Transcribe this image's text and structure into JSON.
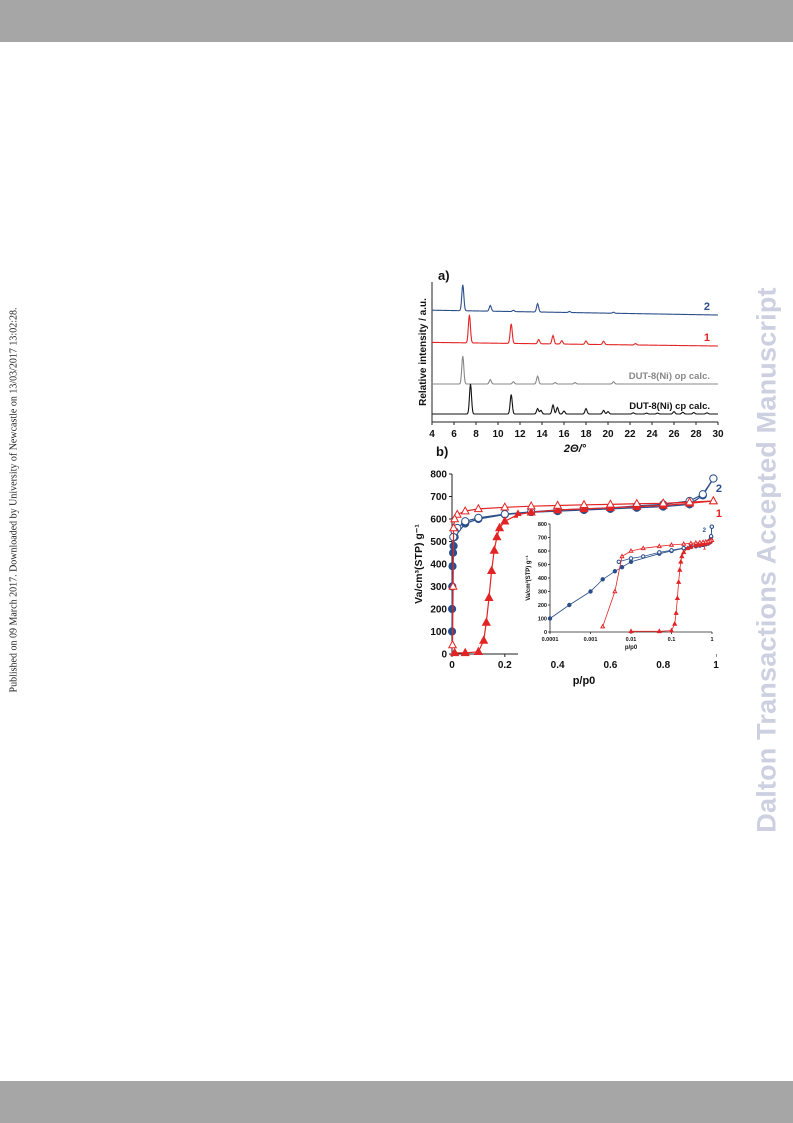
{
  "page": {
    "published_note": "Published on 09 March 2017. Downloaded by University of Newcastle on 13/03/2017 13:02:28.",
    "watermark": "Dalton Transactions Accepted Manuscript"
  },
  "colors": {
    "blue": "#2b4f8a",
    "red": "#e32424",
    "gray": "#888888",
    "black": "#111111"
  },
  "chart_data": [
    {
      "type": "line",
      "panel_label": "a)",
      "xlabel": "2Θ/°",
      "ylabel": "Relative intensity / a.u.",
      "xlim": [
        4,
        30
      ],
      "x_ticks": [
        "4",
        "6",
        "8",
        "10",
        "12",
        "14",
        "16",
        "18",
        "20",
        "22",
        "24",
        "26",
        "28",
        "30"
      ],
      "series": [
        {
          "name": "2",
          "color": "#2b4f8a",
          "peaks": [
            [
              6.8,
              1.0
            ],
            [
              9.3,
              0.22
            ],
            [
              13.6,
              0.32
            ],
            [
              11.4,
              0.05
            ],
            [
              16.5,
              0.04
            ],
            [
              20.5,
              0.04
            ]
          ]
        },
        {
          "name": "1",
          "color": "#e32424",
          "peaks": [
            [
              7.4,
              1.0
            ],
            [
              11.2,
              0.7
            ],
            [
              13.7,
              0.15
            ],
            [
              15.0,
              0.3
            ],
            [
              15.8,
              0.12
            ],
            [
              18.0,
              0.12
            ],
            [
              19.6,
              0.12
            ],
            [
              22.5,
              0.05
            ]
          ]
        },
        {
          "name": "DUT-8(Ni) op calc.",
          "color": "#888888",
          "peaks": [
            [
              6.8,
              1.0
            ],
            [
              9.3,
              0.16
            ],
            [
              11.4,
              0.08
            ],
            [
              13.6,
              0.28
            ],
            [
              15.2,
              0.05
            ],
            [
              17.0,
              0.05
            ],
            [
              20.5,
              0.08
            ]
          ]
        },
        {
          "name": "DUT-8(Ni) cp calc.",
          "color": "#111111",
          "peaks": [
            [
              7.5,
              1.0
            ],
            [
              11.2,
              0.65
            ],
            [
              13.6,
              0.18
            ],
            [
              13.9,
              0.12
            ],
            [
              15.0,
              0.3
            ],
            [
              15.4,
              0.22
            ],
            [
              16.0,
              0.1
            ],
            [
              18.0,
              0.18
            ],
            [
              19.6,
              0.12
            ],
            [
              20.0,
              0.08
            ],
            [
              22.3,
              0.04
            ],
            [
              23.5,
              0.03
            ],
            [
              24.5,
              0.03
            ],
            [
              26.0,
              0.08
            ],
            [
              26.8,
              0.06
            ],
            [
              27.8,
              0.05
            ],
            [
              29.0,
              0.04
            ]
          ]
        }
      ]
    },
    {
      "type": "scatter",
      "panel_label": "b)",
      "xlabel": "p/p0",
      "ylabel": "Va/cm³(STP) g⁻¹",
      "xlim": [
        0,
        1
      ],
      "ylim": [
        0,
        800
      ],
      "x_ticks": [
        "0",
        "0.2",
        "0.4",
        "0.6",
        "0.8",
        "1"
      ],
      "y_ticks": [
        "0",
        "100",
        "200",
        "300",
        "400",
        "500",
        "600",
        "700",
        "800"
      ],
      "series": [
        {
          "name": "2",
          "color": "#2b4f8a",
          "branch": "adsorption",
          "marker": "circle",
          "filled": true,
          "x": [
            0.0001,
            0.0003,
            0.001,
            0.002,
            0.004,
            0.006,
            0.01,
            0.05,
            0.1,
            0.2,
            0.3,
            0.4,
            0.5,
            0.6,
            0.7,
            0.8,
            0.9,
            0.95,
            0.99
          ],
          "y": [
            100,
            200,
            300,
            390,
            450,
            480,
            520,
            580,
            600,
            620,
            630,
            635,
            640,
            645,
            650,
            655,
            665,
            705,
            780
          ]
        },
        {
          "name": "2",
          "color": "#2b4f8a",
          "branch": "desorption",
          "marker": "circle",
          "filled": false,
          "x": [
            0.99,
            0.95,
            0.9,
            0.8,
            0.7,
            0.6,
            0.5,
            0.4,
            0.3,
            0.2,
            0.1,
            0.05,
            0.02,
            0.01,
            0.005
          ],
          "y": [
            780,
            710,
            680,
            665,
            658,
            650,
            645,
            640,
            632,
            622,
            605,
            590,
            560,
            545,
            520
          ]
        },
        {
          "name": "1",
          "color": "#e32424",
          "branch": "adsorption",
          "marker": "triangle",
          "filled": true,
          "x": [
            0.01,
            0.05,
            0.1,
            0.12,
            0.13,
            0.14,
            0.15,
            0.16,
            0.17,
            0.18,
            0.2,
            0.25,
            0.3,
            0.4,
            0.5,
            0.6,
            0.7,
            0.8,
            0.9,
            0.99
          ],
          "y": [
            5,
            5,
            10,
            60,
            140,
            250,
            370,
            460,
            520,
            560,
            590,
            620,
            630,
            640,
            645,
            650,
            655,
            660,
            670,
            680
          ]
        },
        {
          "name": "1",
          "color": "#e32424",
          "branch": "desorption",
          "marker": "triangle",
          "filled": false,
          "x": [
            0.99,
            0.9,
            0.8,
            0.7,
            0.6,
            0.5,
            0.4,
            0.3,
            0.2,
            0.1,
            0.05,
            0.02,
            0.01,
            0.006,
            0.004,
            0.002
          ],
          "y": [
            680,
            675,
            670,
            668,
            665,
            663,
            660,
            657,
            652,
            645,
            635,
            620,
            600,
            560,
            300,
            40
          ]
        }
      ],
      "inset": {
        "xlabel": "p/p0",
        "ylabel": "Va/cm³(STP) g⁻¹",
        "xscale": "log",
        "xlim": [
          0.0001,
          1
        ],
        "ylim": [
          0,
          800
        ],
        "x_ticks": [
          "0.0001",
          "0.001",
          "0.01",
          "0.1",
          "1"
        ],
        "y_ticks": [
          "0",
          "100",
          "200",
          "300",
          "400",
          "500",
          "600",
          "700",
          "800"
        ]
      }
    }
  ]
}
